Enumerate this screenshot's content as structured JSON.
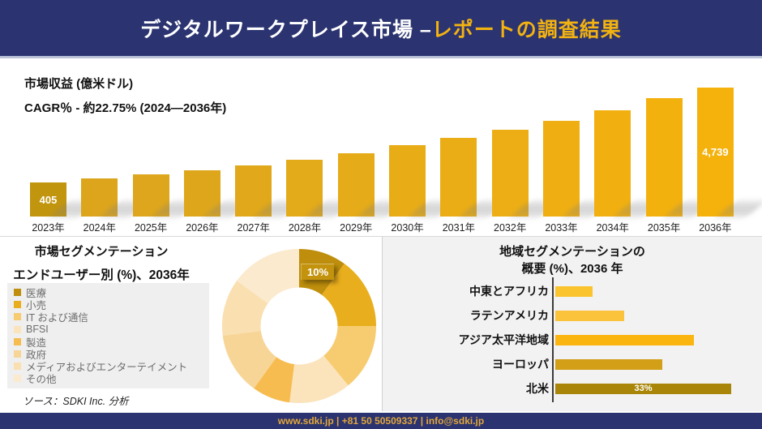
{
  "header": {
    "title_white": "デジタルワークプレイス市場 –",
    "title_yellow": "レポートの調査結果",
    "bg_color": "#2B3470",
    "accent_color": "#F2B211"
  },
  "revenue": {
    "metric_label": "市場収益 (億米ドル)",
    "cagr_label": "CAGR％ - 約22.75% (2024―2036年)"
  },
  "segmentation": {
    "title": "市場セグメンテーション",
    "subtitle": "エンドユーザー別 (%)、2036年",
    "source_note": "ソース：SDKI Inc. 分析"
  },
  "region_section": {
    "title_line1": "地域セグメンテーションの",
    "title_line2": "概要 (%)、2036 年"
  },
  "footer": {
    "text": "www.sdki.jp | +81 50 50509337 | info@sdki.jp"
  },
  "chart_data": [
    {
      "id": "revenue_bars",
      "type": "bar",
      "title": "市場収益 (億米ドル)",
      "subtitle": "CAGR％ - 約22.75% (2024―2036年)",
      "categories": [
        "2023年",
        "2024年",
        "2025年",
        "2026年",
        "2027年",
        "2028年",
        "2029年",
        "2030年",
        "2031年",
        "2032年",
        "2033年",
        "2034年",
        "2035年",
        "2036年"
      ],
      "values": [
        405,
        null,
        null,
        null,
        null,
        null,
        null,
        null,
        null,
        null,
        null,
        null,
        null,
        4739
      ],
      "value_labels": [
        "405",
        null,
        null,
        null,
        null,
        null,
        null,
        null,
        null,
        null,
        null,
        null,
        null,
        "4,739"
      ],
      "bar_heights_pct": [
        26.4,
        29.6,
        32.7,
        35.8,
        39.6,
        44.0,
        49.1,
        55.3,
        61.0,
        67.3,
        74.2,
        82.4,
        91.8,
        100
      ],
      "bar_colors": [
        "#C2950F",
        "#DCA51C",
        "#DDA61C",
        "#DEA71B",
        "#E0A81A",
        "#E3AA19",
        "#E5AB18",
        "#E8AC17",
        "#EAAD15",
        "#ECAE14",
        "#EFAF12",
        "#F1B010",
        "#F3B10E",
        "#F5B20D"
      ],
      "label_color": "#ffffff",
      "grid": false
    },
    {
      "id": "end_user_donut",
      "type": "pie",
      "title": "エンドユーザー別 (%)、2036年",
      "shown_label": "10%",
      "segments": [
        {
          "label": "医療",
          "pct": 10,
          "color": "#BE8E0C",
          "data_label": "10%"
        },
        {
          "label": "小売",
          "pct": 15,
          "color": "#E9AE1D",
          "data_label": null
        },
        {
          "label": "IT および通信",
          "pct": 14,
          "color": "#F7CB6F",
          "data_label": null
        },
        {
          "label": "BFSI",
          "pct": 13,
          "color": "#FBE3BC",
          "data_label": null
        },
        {
          "label": "製造",
          "pct": 8,
          "color": "#F7BC4F",
          "data_label": null
        },
        {
          "label": "政府",
          "pct": 13,
          "color": "#F7D596",
          "data_label": null
        },
        {
          "label": "メディアおよびエンターテイメント",
          "pct": 12,
          "color": "#FADFB0",
          "data_label": null
        },
        {
          "label": "その他",
          "pct": 15,
          "color": "#FBEACD",
          "data_label": null
        }
      ]
    },
    {
      "id": "region_bars",
      "type": "bar",
      "orientation": "horizontal",
      "title": "地域セグメンテーションの 概要 (%)、2036 年",
      "max_pct": 33,
      "items": [
        {
          "label": "中東とアフリカ",
          "pct": 7,
          "color": "#FAC42E",
          "data_label": null
        },
        {
          "label": "ラテンアメリカ",
          "pct": 13,
          "color": "#FBC33B",
          "data_label": null
        },
        {
          "label": "アジア太平洋地域",
          "pct": 26,
          "color": "#FBB510",
          "data_label": null
        },
        {
          "label": "ヨーロッパ",
          "pct": 20,
          "color": "#D29F17",
          "data_label": null
        },
        {
          "label": "北米",
          "pct": 33,
          "color": "#A98609",
          "data_label": "33%"
        }
      ]
    }
  ]
}
